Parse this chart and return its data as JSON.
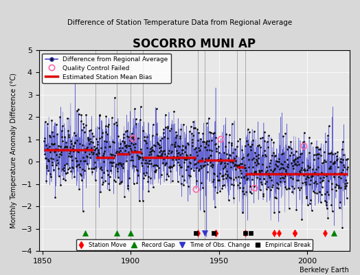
{
  "title": "SOCORRO MUNI AP",
  "subtitle": "Difference of Station Temperature Data from Regional Average",
  "ylabel": "Monthly Temperature Anomaly Difference (°C)",
  "xlabel_bottom": "Berkeley Earth",
  "xlim": [
    1848,
    2024
  ],
  "ylim": [
    -4,
    5
  ],
  "yticks": [
    -4,
    -3,
    -2,
    -1,
    0,
    1,
    2,
    3,
    4,
    5
  ],
  "xticks": [
    1850,
    1900,
    1950,
    2000
  ],
  "bg_color": "#d8d8d8",
  "plot_bg_color": "#e8e8e8",
  "grid_color": "#ffffff",
  "line_color": "#4444cc",
  "dot_color": "#111111",
  "bias_color": "#dd0000",
  "vertical_lines": [
    1880,
    1892,
    1900,
    1907,
    1938,
    1942,
    1960,
    1965
  ],
  "bias_segments": [
    {
      "x": [
        1851,
        1879
      ],
      "y": [
        0.55,
        0.55
      ]
    },
    {
      "x": [
        1880,
        1891
      ],
      "y": [
        0.2,
        0.2
      ]
    },
    {
      "x": [
        1892,
        1899
      ],
      "y": [
        0.35,
        0.35
      ]
    },
    {
      "x": [
        1900,
        1906
      ],
      "y": [
        0.45,
        0.45
      ]
    },
    {
      "x": [
        1907,
        1937
      ],
      "y": [
        0.2,
        0.2
      ]
    },
    {
      "x": [
        1938,
        1941
      ],
      "y": [
        0.05,
        0.05
      ]
    },
    {
      "x": [
        1942,
        1959
      ],
      "y": [
        0.08,
        0.08
      ]
    },
    {
      "x": [
        1960,
        1964
      ],
      "y": [
        -0.25,
        -0.25
      ]
    },
    {
      "x": [
        1965,
        2023
      ],
      "y": [
        -0.55,
        -0.55
      ]
    }
  ],
  "station_moves": [
    1938,
    1948,
    1948,
    1965,
    1981,
    1984,
    1993,
    1993,
    1993,
    2010
  ],
  "record_gaps": [
    1874,
    1892,
    1900,
    2015
  ],
  "obs_changes": [
    1942
  ],
  "empirical_breaks": [
    1937,
    1947,
    1965,
    1968
  ],
  "qc_failed_approx": [
    1901,
    1937,
    1951,
    1970,
    1998
  ],
  "marker_y": -3.2,
  "seed": 42
}
